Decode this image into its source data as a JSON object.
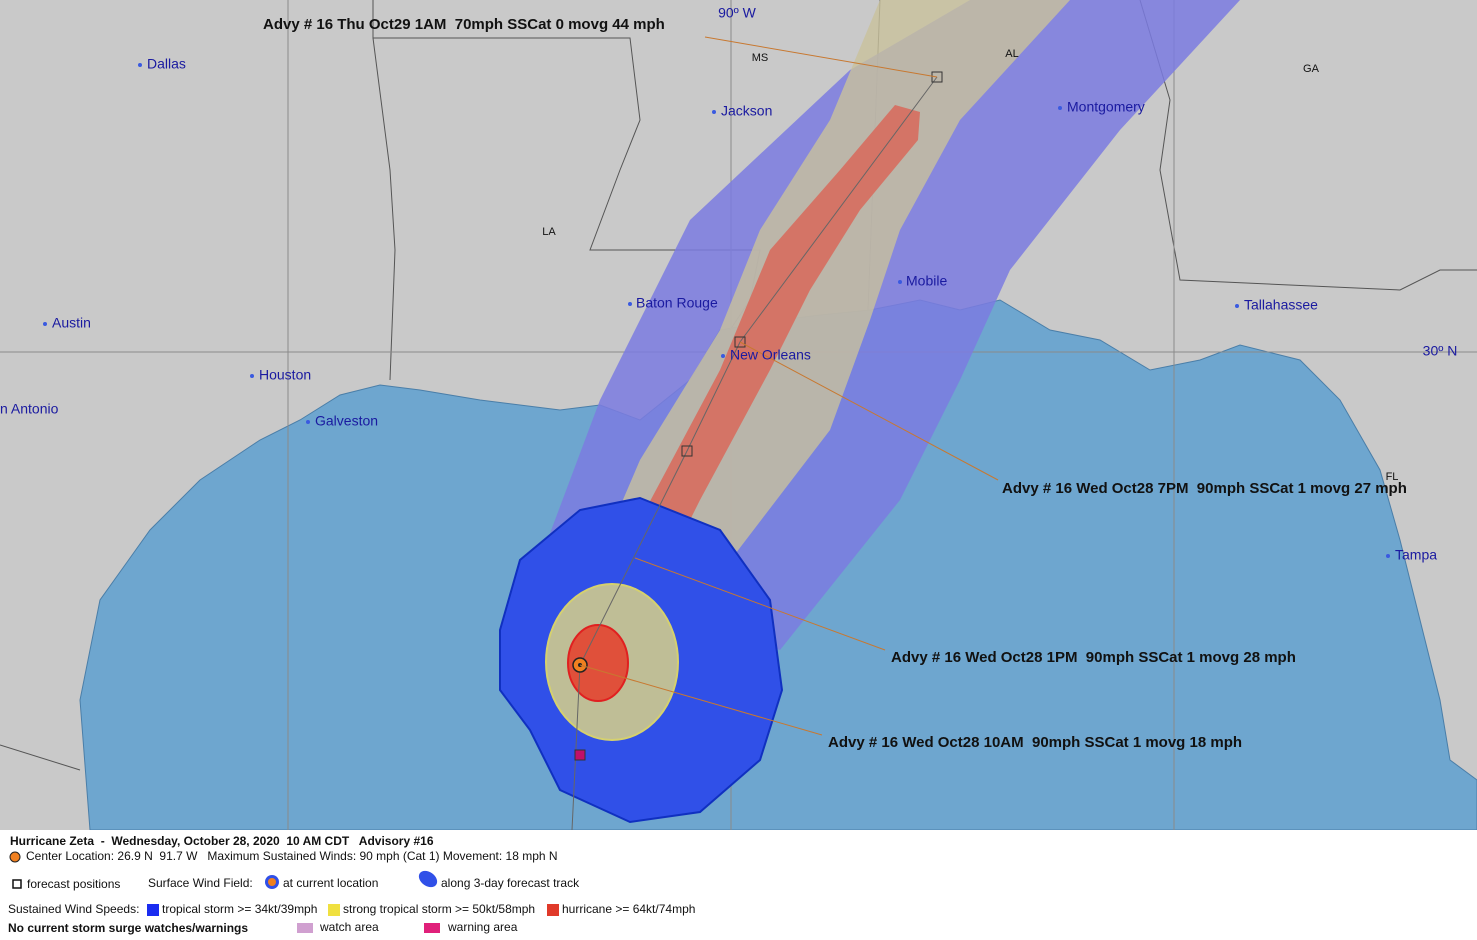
{
  "map": {
    "lon_label": "90º W",
    "lat_label": "30º N",
    "states": [
      "MS",
      "AL",
      "GA",
      "LA",
      "FL"
    ],
    "cities": [
      "Dallas",
      "Jackson",
      "Montgomery",
      "Austin",
      "Baton Rouge",
      "Mobile",
      "Tallahassee",
      "New Orleans",
      "Houston",
      "n Antonio",
      "Galveston",
      "Tampa"
    ]
  },
  "advisories": [
    "Advy # 16 Thu Oct29 1AM  70mph SSCat 0 movg 44 mph",
    "Advy # 16 Wed Oct28 7PM  90mph SSCat 1 movg 27 mph",
    "Advy # 16 Wed Oct28 1PM  90mph SSCat 1 movg 28 mph",
    "Advy # 16 Wed Oct28 10AM  90mph SSCat 1 movg 18 mph"
  ],
  "legend": {
    "title": "Hurricane Zeta  -  Wednesday, October 28, 2020  10 AM CDT   Advisory #16",
    "center_info": "Center Location: 26.9 N  91.7 W   Maximum Sustained Winds: 90 mph (Cat 1) Movement: 18 mph N",
    "forecast_positions": "forecast positions",
    "surface_wind_field": "Surface Wind Field:",
    "at_current_location": "at current location",
    "along_track": "along 3-day forecast track",
    "sustained_wind_speeds": "Sustained Wind Speeds:",
    "tropical_storm": "tropical storm >= 34kt/39mph",
    "strong_tropical_storm": "strong tropical storm >= 50kt/58mph",
    "hurricane": "hurricane >= 64kt/74mph",
    "no_surge": "No current storm surge watches/warnings",
    "watch_area": "watch area",
    "warning_area": "warning area"
  }
}
